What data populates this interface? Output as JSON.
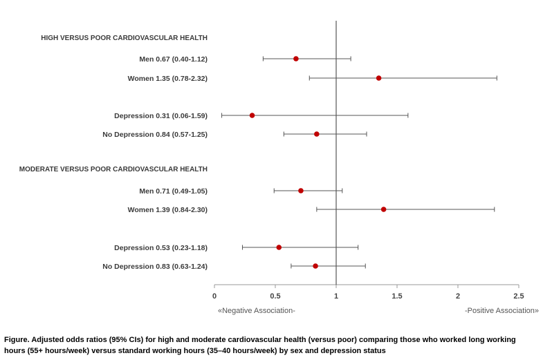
{
  "chart_data": {
    "type": "forest",
    "xlim": [
      0,
      2.5
    ],
    "reference_line": 1,
    "ticks": [
      "0",
      "0.5",
      "1",
      "1.5",
      "2",
      "2.5"
    ],
    "tick_values": [
      0,
      0.5,
      1,
      1.5,
      2,
      2.5
    ],
    "axis_notes": {
      "left": "«Negative Association-",
      "right": "-Positive Association»"
    },
    "point_color": "#c00000",
    "sections": [
      {
        "title": "HIGH VERSUS POOR CARDIOVASCULAR HEALTH",
        "rows": [
          {
            "label": "Men  0.67 (0.40-1.12)",
            "or": 0.67,
            "lo": 0.4,
            "hi": 1.12
          },
          {
            "label": "Women  1.35 (0.78-2.32)",
            "or": 1.35,
            "lo": 0.78,
            "hi": 2.32
          },
          {
            "label": "Depression  0.31 (0.06-1.59)",
            "or": 0.31,
            "lo": 0.06,
            "hi": 1.59
          },
          {
            "label": "No Depression  0.84 (0.57-1.25)",
            "or": 0.84,
            "lo": 0.57,
            "hi": 1.25
          }
        ]
      },
      {
        "title": "MODERATE VERSUS POOR CARDIOVASCULAR HEALTH",
        "rows": [
          {
            "label": "Men 0.71 (0.49-1.05)",
            "or": 0.71,
            "lo": 0.49,
            "hi": 1.05
          },
          {
            "label": "Women  1.39 (0.84-2.30)",
            "or": 1.39,
            "lo": 0.84,
            "hi": 2.3
          },
          {
            "label": "Depression  0.53 (0.23-1.18)",
            "or": 0.53,
            "lo": 0.23,
            "hi": 1.18
          },
          {
            "label": "No Depression  0.83 (0.63-1.24)",
            "or": 0.83,
            "lo": 0.63,
            "hi": 1.24
          }
        ]
      }
    ]
  },
  "caption": "Figure. Adjusted odds ratios (95% CIs) for high and moderate cardiovascular health (versus poor) comparing those who worked long working hours (55+ hours/week) versus standard working hours (35–40 hours/week) by sex and depression status"
}
